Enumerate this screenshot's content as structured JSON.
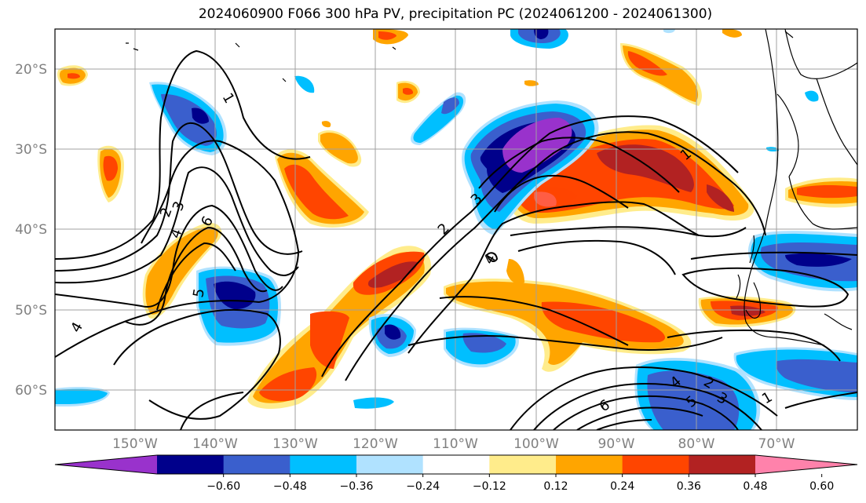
{
  "title": "2024060900 F066 300 hPa PV, precipitation PC (2024061200 - 2024061300)",
  "lat_labels": [
    "20°S",
    "30°S",
    "40°S",
    "50°S",
    "60°S"
  ],
  "lon_labels": [
    "150°W",
    "140°W",
    "130°W",
    "120°W",
    "110°W",
    "100°W",
    "90°W",
    "80°W",
    "70°W"
  ],
  "colorbar": {
    "tick_labels": [
      "−0.60",
      "−0.48",
      "−0.36",
      "−0.24",
      "−0.12",
      "0.12",
      "0.24",
      "0.36",
      "0.48",
      "0.60"
    ],
    "colors": [
      "#9932cc",
      "#00008b",
      "#3a5fcd",
      "#00bfff",
      "#b0e2ff",
      "#ffffff",
      "#ffec8b",
      "#ffa500",
      "#ff4500",
      "#b22222",
      "#ff82ab"
    ]
  },
  "contour_labels": [
    "1",
    "2",
    "3",
    "4",
    "5",
    "6",
    "1",
    "2",
    "3",
    "4",
    "5",
    "6",
    "1",
    "2",
    "3",
    "4",
    "5",
    "6",
    "4"
  ]
}
